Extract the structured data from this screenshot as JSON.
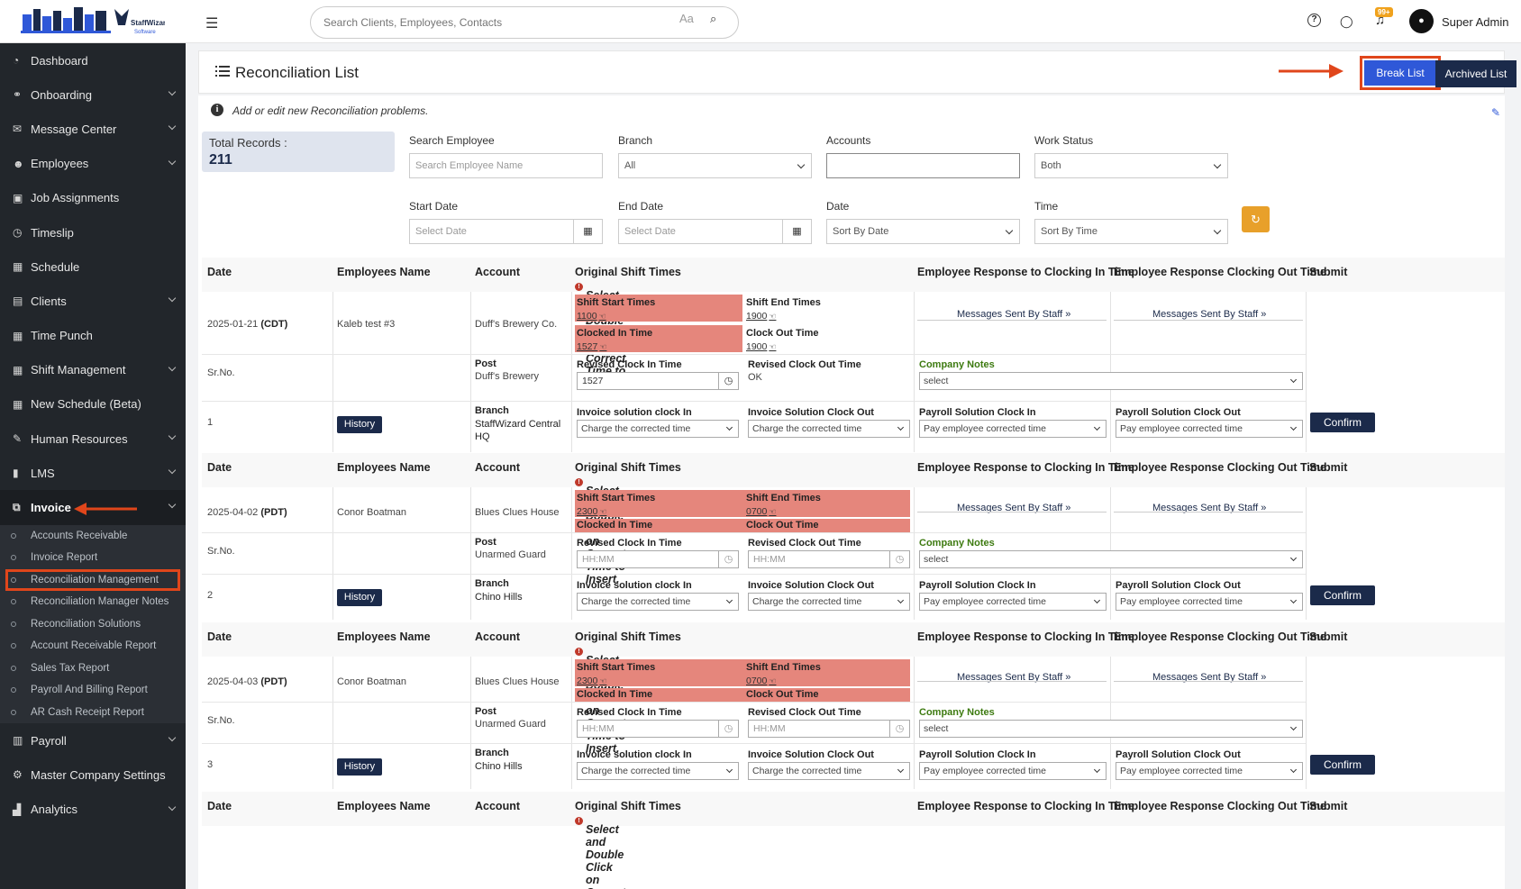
{
  "sidebar": {
    "logo_text": "StaffWizard Software",
    "items": [
      {
        "label": "Dashboard",
        "icon": "gauge-icon",
        "glyph": "◔",
        "chev": false
      },
      {
        "label": "Onboarding",
        "icon": "handshake-icon",
        "glyph": "⚭",
        "chev": true
      },
      {
        "label": "Message Center",
        "icon": "chat-icon",
        "glyph": "✉",
        "chev": true
      },
      {
        "label": "Employees",
        "icon": "users-icon",
        "glyph": "☻",
        "chev": true
      },
      {
        "label": "Job Assignments",
        "icon": "briefcase-icon",
        "glyph": "▣",
        "chev": false
      },
      {
        "label": "Timeslip",
        "icon": "clock-icon",
        "glyph": "◷",
        "chev": false
      },
      {
        "label": "Schedule",
        "icon": "calendar-icon",
        "glyph": "▦",
        "chev": false
      },
      {
        "label": "Clients",
        "icon": "building-icon",
        "glyph": "▤",
        "chev": true
      },
      {
        "label": "Time Punch",
        "icon": "calendar-icon",
        "glyph": "▦",
        "chev": false
      },
      {
        "label": "Shift Management",
        "icon": "calendar-check-icon",
        "glyph": "▦",
        "chev": true
      },
      {
        "label": "New Schedule (Beta)",
        "icon": "calendar-icon",
        "glyph": "▦",
        "chev": false
      },
      {
        "label": "Human Resources",
        "icon": "pen-icon",
        "glyph": "✎",
        "chev": true
      },
      {
        "label": "LMS",
        "icon": "file-icon",
        "glyph": "▮",
        "chev": true
      },
      {
        "label": "Invoice",
        "icon": "invoice-icon",
        "glyph": "⧉",
        "chev": true
      }
    ],
    "sub_items": [
      "Accounts Receivable",
      "Invoice Report",
      "Reconciliation Management",
      "Reconciliation Manager Notes",
      "Reconciliation Solutions",
      "Account Receivable Report",
      "Sales Tax Report",
      "Payroll And Billing Report",
      "AR Cash Receipt Report"
    ],
    "bottom_items": [
      {
        "label": "Payroll",
        "icon": "wallet-icon",
        "glyph": "▥",
        "chev": true
      },
      {
        "label": "Master Company Settings",
        "icon": "gears-icon",
        "glyph": "⚙",
        "chev": false
      },
      {
        "label": "Analytics",
        "icon": "chart-icon",
        "glyph": "▟",
        "chev": true
      }
    ]
  },
  "topbar": {
    "search_placeholder": "Search Clients, Employees, Contacts",
    "aa": "Aa",
    "badge": "99+",
    "username": "Super Admin"
  },
  "page": {
    "title": "Reconciliation List",
    "break_list": "Break List",
    "archived_list": "Archived List",
    "info": "Add or edit new Reconciliation problems."
  },
  "filters": {
    "total_label": "Total Records :",
    "total_value": "211",
    "search_employee_label": "Search Employee",
    "search_employee_placeholder": "Search Employee Name",
    "branch_label": "Branch",
    "branch_value": "All",
    "accounts_label": "Accounts",
    "accounts_value": "",
    "work_status_label": "Work Status",
    "work_status_value": "Both",
    "start_date_label": "Start Date",
    "start_date_placeholder": "Select Date",
    "end_date_label": "End Date",
    "end_date_placeholder": "Select Date",
    "date_label": "Date",
    "date_value": "Sort By Date",
    "time_label": "Time",
    "time_value": "Sort By Time"
  },
  "columns": {
    "date": "Date",
    "employee": "Employees Name",
    "account": "Account",
    "original": "Original Shift Times",
    "hint": "Select and Double Click on Correct Time to Insert.",
    "resp_in": "Employee Response to Clocking In Time",
    "resp_out": "Employee Response Clocking Out Time",
    "submit": "Submit"
  },
  "labels": {
    "shift_start": "Shift Start Times",
    "shift_end": "Shift End Times",
    "clocked_in": "Clocked In Time",
    "clock_out": "Clock Out Time",
    "msg_sent": "Messages Sent By Staff",
    "srno": "Sr.No.",
    "post": "Post",
    "branch": "Branch",
    "revised_in": "Revised Clock In Time",
    "revised_out": "Revised Clock Out Time",
    "company_notes": "Company Notes",
    "notes_select": "select",
    "inv_in": "Invoice solution clock In",
    "inv_out": "Invoice Solution Clock Out",
    "pay_in": "Payroll Solution Clock In",
    "pay_out": "Payroll Solution Clock Out",
    "charge": "Charge the corrected time",
    "pay": "Pay employee corrected time",
    "history": "History",
    "confirm": "Confirm",
    "hhmm": "HH:MM"
  },
  "records": [
    {
      "date": "2025-01-21",
      "tz": "(CDT)",
      "employee": "Kaleb test #3",
      "account": "Duff's Brewery Co.",
      "post": "Duff's Brewery",
      "branch": "StaffWizard Central HQ",
      "sr": "1",
      "shift_start": "1100",
      "shift_end": "1900",
      "clocked_in": "1527",
      "clock_out": "1900",
      "revised_in": "1527",
      "revised_out": "OK"
    },
    {
      "date": "2025-04-02",
      "tz": "(PDT)",
      "employee": "Conor Boatman",
      "account": "Blues Clues House",
      "post": "Unarmed Guard",
      "branch": "Chino Hills",
      "sr": "2",
      "shift_start": "2300",
      "shift_end": "0700",
      "clocked_in": "",
      "clock_out": "",
      "revised_in": "",
      "revised_out": ""
    },
    {
      "date": "2025-04-03",
      "tz": "(PDT)",
      "employee": "Conor Boatman",
      "account": "Blues Clues House",
      "post": "Unarmed Guard",
      "branch": "Chino Hills",
      "sr": "3",
      "shift_start": "2300",
      "shift_end": "0700",
      "clocked_in": "",
      "clock_out": "",
      "revised_in": "",
      "revised_out": ""
    }
  ]
}
